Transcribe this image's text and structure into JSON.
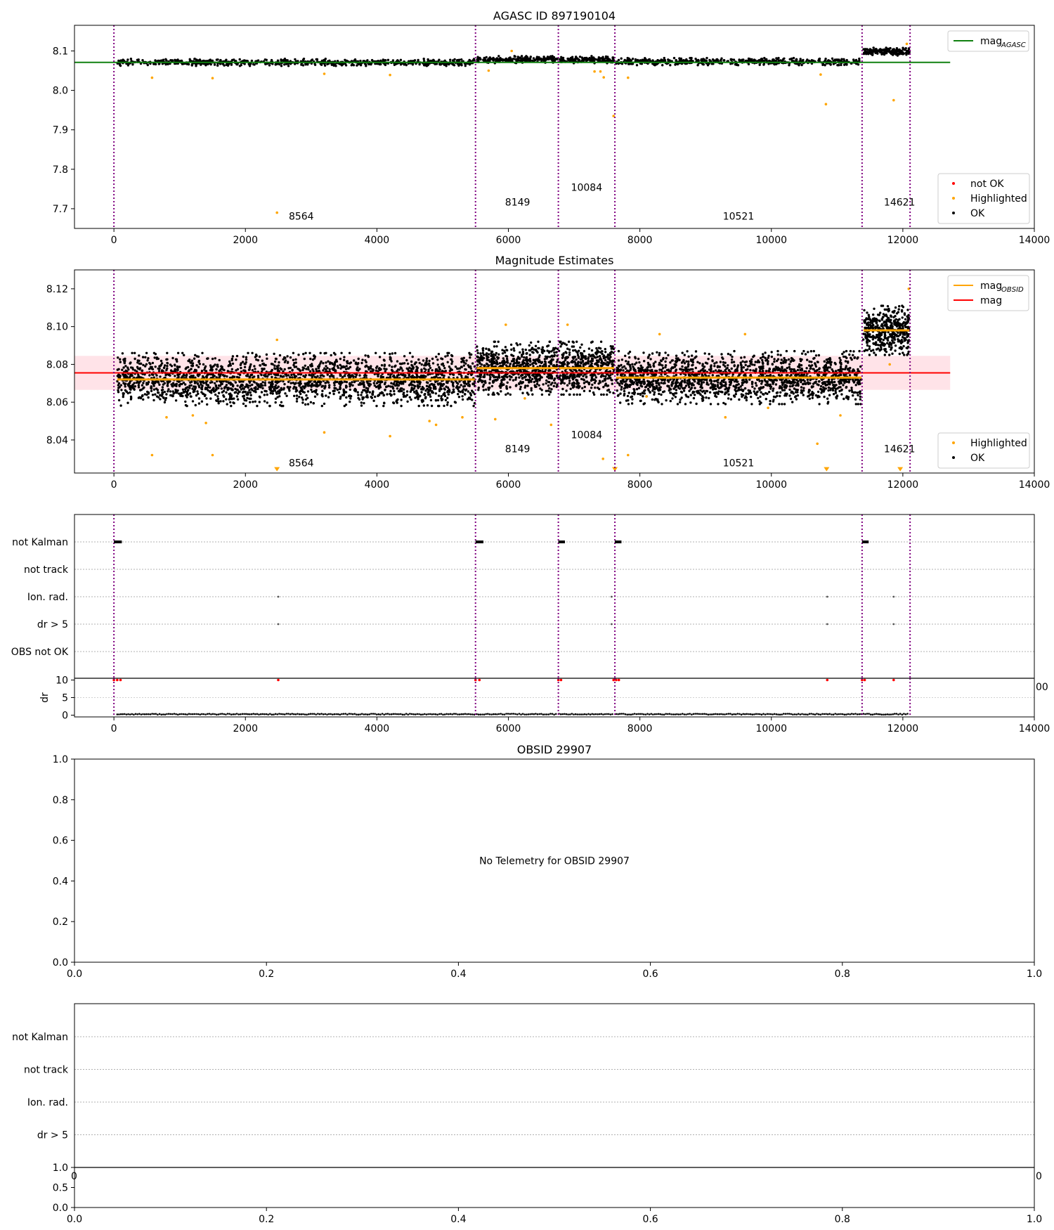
{
  "chart_data": [
    {
      "id": "p1",
      "type": "scatter",
      "title": "AGASC ID 897190104",
      "xlim": [
        -600,
        14000
      ],
      "ylim": [
        7.65,
        8.165
      ],
      "xticks": [
        0,
        2000,
        4000,
        6000,
        8000,
        10000,
        12000,
        14000
      ],
      "xtick_labels": [
        "0",
        "2000",
        "4000",
        "6000",
        "8000",
        "10000",
        "12000",
        "14000"
      ],
      "yticks": [
        7.7,
        7.8,
        7.9,
        8.0,
        8.1
      ],
      "ytick_labels": [
        "7.7",
        "7.8",
        "7.9",
        "8.0",
        "8.1"
      ],
      "vlines": [
        0,
        5500,
        6760,
        7620,
        11380,
        12110
      ],
      "obs_labels": [
        {
          "x": 2850,
          "y": 7.672,
          "text": "8564"
        },
        {
          "x": 6140,
          "y": 7.708,
          "text": "8149"
        },
        {
          "x": 7190,
          "y": 7.745,
          "text": "10084"
        },
        {
          "x": 9500,
          "y": 7.672,
          "text": "10521"
        },
        {
          "x": 11950,
          "y": 7.708,
          "text": "14621"
        }
      ],
      "segments": [
        {
          "x0": 50,
          "x1": 5490,
          "center": 8.071,
          "half_width": 0.009,
          "count": 700
        },
        {
          "x0": 5520,
          "x1": 6750,
          "center": 8.078,
          "half_width": 0.009,
          "count": 200
        },
        {
          "x0": 6770,
          "x1": 7610,
          "center": 8.078,
          "half_width": 0.009,
          "count": 140
        },
        {
          "x0": 7640,
          "x1": 11370,
          "center": 8.073,
          "half_width": 0.009,
          "count": 500
        },
        {
          "x0": 11400,
          "x1": 12100,
          "center": 8.098,
          "half_width": 0.01,
          "count": 160
        }
      ],
      "highlighted": [
        [
          580,
          8.032
        ],
        [
          1500,
          8.031
        ],
        [
          2480,
          7.69
        ],
        [
          3200,
          8.042
        ],
        [
          4200,
          8.039
        ],
        [
          5700,
          8.05
        ],
        [
          7310,
          8.048
        ],
        [
          7400,
          8.048
        ],
        [
          7450,
          8.033
        ],
        [
          7600,
          7.935
        ],
        [
          7820,
          8.032
        ],
        [
          10830,
          7.965
        ],
        [
          11860,
          7.975
        ],
        [
          10750,
          8.04
        ],
        [
          6050,
          8.1
        ],
        [
          12060,
          8.118
        ]
      ],
      "hlines": [
        {
          "y": 8.071,
          "x0": -600,
          "x1": 12720,
          "color": "#108010"
        }
      ],
      "legend_top": {
        "entries": [
          {
            "label": "mag",
            "sub": "AGASC",
            "color": "#108010"
          }
        ]
      },
      "legend_bottom": {
        "entries": [
          {
            "label": "not OK",
            "color": "#ff0000"
          },
          {
            "label": "Highlighted",
            "color": "#ffa500"
          },
          {
            "label": "OK",
            "color": "#000000"
          }
        ]
      }
    },
    {
      "id": "p2",
      "type": "scatter",
      "title": "Magnitude Estimates",
      "xlim": [
        -600,
        14000
      ],
      "ylim": [
        8.0225,
        8.13
      ],
      "xticks": [
        0,
        2000,
        4000,
        6000,
        8000,
        10000,
        12000,
        14000
      ],
      "xtick_labels": [
        "0",
        "2000",
        "4000",
        "6000",
        "8000",
        "10000",
        "12000",
        "14000"
      ],
      "yticks": [
        8.04,
        8.06,
        8.08,
        8.1,
        8.12
      ],
      "ytick_labels": [
        "8.04",
        "8.06",
        "8.08",
        "8.10",
        "8.12"
      ],
      "vlines": [
        0,
        5500,
        6760,
        7620,
        11380,
        12110
      ],
      "obs_labels": [
        {
          "x": 2850,
          "y": 8.026,
          "text": "8564"
        },
        {
          "x": 6140,
          "y": 8.0335,
          "text": "8149"
        },
        {
          "x": 7190,
          "y": 8.041,
          "text": "10084"
        },
        {
          "x": 9500,
          "y": 8.026,
          "text": "10521"
        },
        {
          "x": 11950,
          "y": 8.0335,
          "text": "14621"
        }
      ],
      "segments": [
        {
          "x0": 50,
          "x1": 5490,
          "center": 8.072,
          "half_width": 0.014,
          "count": 2200
        },
        {
          "x0": 5520,
          "x1": 6750,
          "center": 8.078,
          "half_width": 0.014,
          "count": 650
        },
        {
          "x0": 6770,
          "x1": 7610,
          "center": 8.078,
          "half_width": 0.014,
          "count": 450
        },
        {
          "x0": 7640,
          "x1": 11370,
          "center": 8.073,
          "half_width": 0.014,
          "count": 1600
        },
        {
          "x0": 11400,
          "x1": 12100,
          "center": 8.098,
          "half_width": 0.013,
          "count": 450
        }
      ],
      "highlighted": [
        [
          580,
          8.032
        ],
        [
          1500,
          8.032
        ],
        [
          800,
          8.052
        ],
        [
          1200,
          8.053
        ],
        [
          1400,
          8.049
        ],
        [
          3200,
          8.044
        ],
        [
          4200,
          8.042
        ],
        [
          4800,
          8.05
        ],
        [
          4900,
          8.048
        ],
        [
          5300,
          8.052
        ],
        [
          5800,
          8.051
        ],
        [
          5960,
          8.101
        ],
        [
          6250,
          8.062
        ],
        [
          6650,
          8.048
        ],
        [
          7440,
          8.03
        ],
        [
          7820,
          8.032
        ],
        [
          8100,
          8.063
        ],
        [
          8300,
          8.096
        ],
        [
          9300,
          8.052
        ],
        [
          9600,
          8.096
        ],
        [
          9950,
          8.057
        ],
        [
          10700,
          8.038
        ],
        [
          11050,
          8.053
        ],
        [
          11800,
          8.08
        ],
        [
          12090,
          8.12
        ],
        [
          2480,
          8.093
        ],
        [
          6900,
          8.101
        ]
      ],
      "highlighted_tri": [
        [
          2480,
          8.0245
        ],
        [
          7620,
          8.0245
        ],
        [
          10840,
          8.0245
        ],
        [
          11960,
          8.0245
        ]
      ],
      "band": {
        "y0": 8.0665,
        "y1": 8.0845,
        "x0": -600,
        "x1": 12720
      },
      "hlines": [
        {
          "y": 8.0755,
          "x0": -600,
          "x1": 12720,
          "color": "#ff0000"
        }
      ],
      "step_lines": [
        {
          "x0": 50,
          "x1": 5490,
          "y": 8.072
        },
        {
          "x0": 5520,
          "x1": 6750,
          "y": 8.078
        },
        {
          "x0": 6770,
          "x1": 7610,
          "y": 8.078
        },
        {
          "x0": 7640,
          "x1": 11370,
          "y": 8.073
        },
        {
          "x0": 11400,
          "x1": 12100,
          "y": 8.098
        }
      ],
      "legend_top": {
        "entries": [
          {
            "label": "mag",
            "sub": "OBSID",
            "color": "#ffa500"
          },
          {
            "label": "mag",
            "sub": "",
            "color": "#ff0000"
          }
        ]
      },
      "legend_bottom": {
        "entries": [
          {
            "label": "Highlighted",
            "color": "#ffa500"
          },
          {
            "label": "OK",
            "color": "#000000"
          }
        ]
      }
    },
    {
      "id": "p3",
      "type": "scatter",
      "xlim": [
        -600,
        14000
      ],
      "categories": [
        "not Kalman",
        "not track",
        "Ion. rad.",
        "dr > 5",
        "OBS not OK"
      ],
      "vlines": [
        0,
        5500,
        6760,
        7620,
        11380,
        12110
      ],
      "flag_blocks": [
        [
          0,
          120
        ],
        [
          5500,
          5620
        ],
        [
          6760,
          6860
        ],
        [
          7620,
          7720
        ],
        [
          11380,
          11480
        ]
      ],
      "flag_points": [
        2500,
        7570,
        10850,
        11860
      ],
      "dr_inset": {
        "ylabel": "dr",
        "ylim": [
          -0.5,
          10.5
        ],
        "yticks": [
          0,
          5,
          10
        ],
        "ytick_labels": [
          "0",
          "5",
          "10"
        ],
        "xticks": [
          0,
          2000,
          4000,
          6000,
          8000,
          10000,
          12000,
          14000
        ],
        "xtick_labels": [
          "0",
          "2000",
          "4000",
          "6000",
          "8000",
          "10000",
          "12000",
          "14000"
        ],
        "overflow_label": "00",
        "high_points": [
          0,
          50,
          100,
          2500,
          5500,
          5560,
          6760,
          6800,
          7600,
          7640,
          7680,
          10850,
          11380,
          11420,
          11860
        ]
      }
    },
    {
      "id": "p4",
      "type": "scatter",
      "title": "OBSID 29907",
      "message": "No Telemetry for OBSID 29907",
      "xlim": [
        0,
        1
      ],
      "ylim": [
        0,
        1
      ],
      "xticks": [
        0,
        0.2,
        0.4,
        0.6,
        0.8,
        1.0
      ],
      "xtick_labels": [
        "0.0",
        "0.2",
        "0.4",
        "0.6",
        "0.8",
        "1.0"
      ],
      "yticks": [
        0,
        0.2,
        0.4,
        0.6,
        0.8,
        1.0
      ],
      "ytick_labels": [
        "0.0",
        "0.2",
        "0.4",
        "0.6",
        "0.8",
        "1.0"
      ]
    },
    {
      "id": "p5",
      "type": "scatter",
      "categories": [
        "not Kalman",
        "not track",
        "Ion. rad.",
        "dr > 5"
      ],
      "xlim": [
        0,
        1
      ],
      "hidden_tick_labels": [
        "0",
        "0"
      ],
      "inset": {
        "ylim": [
          0,
          1
        ],
        "yticks": [
          0,
          0.5,
          1.0
        ],
        "ytick_labels": [
          "0.0",
          "0.5",
          "1.0"
        ],
        "xticks": [
          0,
          0.2,
          0.4,
          0.6,
          0.8,
          1.0
        ],
        "xtick_labels": [
          "0.0",
          "0.2",
          "0.4",
          "0.6",
          "0.8",
          "1.0"
        ]
      }
    }
  ]
}
